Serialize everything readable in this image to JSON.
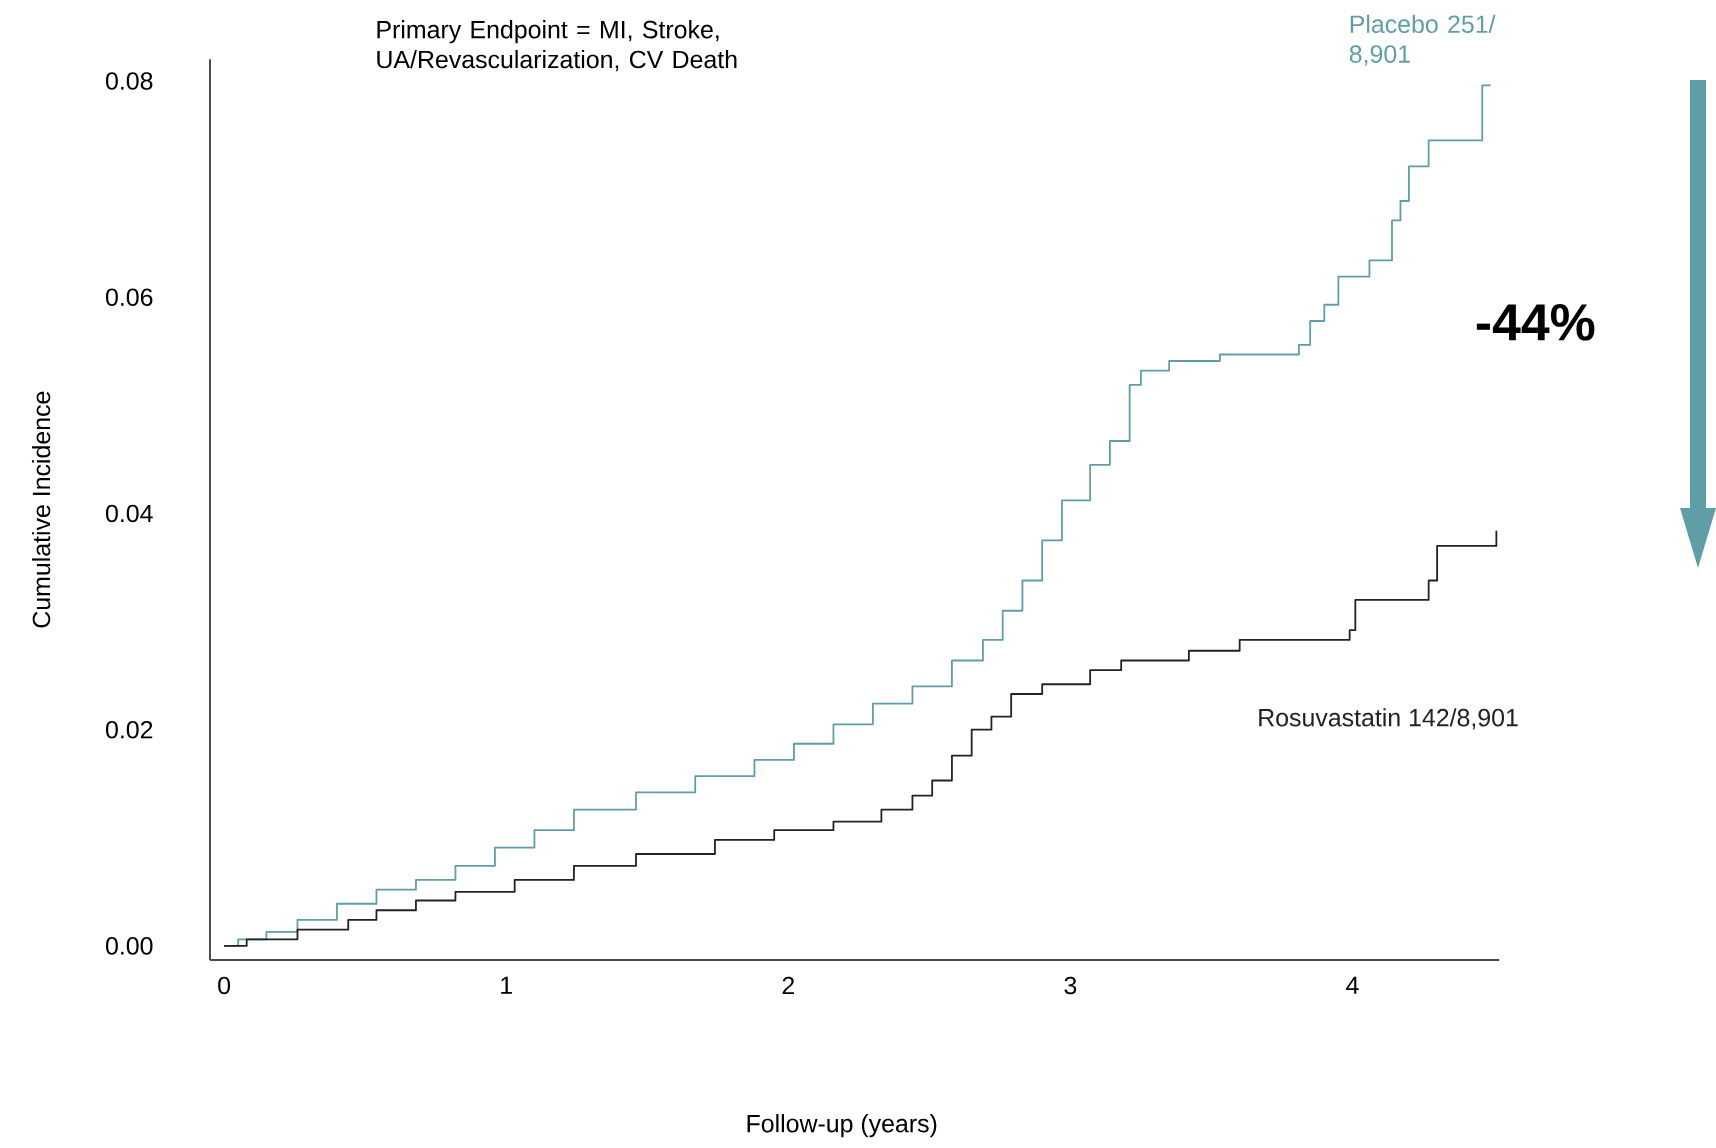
{
  "chart_data": {
    "type": "step",
    "annotations": [
      "Primary Endpoint = MI, Stroke, UA/Revascularization, CV Death",
      "-44%"
    ],
    "xlabel": "Follow-up (years)",
    "ylabel": "Cumulative Incidence",
    "xlim": [
      -0.05,
      4.52
    ],
    "ylim": [
      -0.0013,
      0.082
    ],
    "xticks": [
      0,
      1,
      2,
      3,
      4
    ],
    "yticks": [
      {
        "value": 0,
        "label": "0.00"
      },
      {
        "value": 0.02,
        "label": "0.02"
      },
      {
        "value": 0.04,
        "label": "0.04"
      },
      {
        "value": 0.06,
        "label": "0.06"
      },
      {
        "value": 0.08,
        "label": "0.08"
      }
    ],
    "grid": false,
    "legend": false,
    "series": [
      {
        "name": "Placebo 251/ 8,901",
        "color": "#5f9ea6",
        "x": [
          0,
          0.05,
          0.15,
          0.26,
          0.4,
          0.54,
          0.68,
          0.82,
          0.96,
          1.1,
          1.24,
          1.46,
          1.67,
          1.88,
          2.02,
          2.16,
          2.3,
          2.44,
          2.58,
          2.69,
          2.76,
          2.83,
          2.9,
          2.97,
          3.07,
          3.14,
          3.21,
          3.25,
          3.35,
          3.53,
          3.81,
          3.85,
          3.9,
          3.95,
          4.06,
          4.14,
          4.17,
          4.2,
          4.27,
          4.46,
          4.49
        ],
        "values": [
          0,
          0.0006,
          0.0013,
          0.0024,
          0.0039,
          0.0052,
          0.0061,
          0.0074,
          0.0091,
          0.0107,
          0.0126,
          0.0142,
          0.0157,
          0.0172,
          0.0187,
          0.0205,
          0.0224,
          0.024,
          0.0264,
          0.0283,
          0.031,
          0.0338,
          0.0375,
          0.0412,
          0.0445,
          0.0467,
          0.0519,
          0.0532,
          0.0541,
          0.0547,
          0.0556,
          0.0578,
          0.0593,
          0.0619,
          0.0634,
          0.0671,
          0.0689,
          0.0721,
          0.0745,
          0.0796,
          0.0796
        ]
      },
      {
        "name": "Rosuvastatin 142/8,901",
        "color": "#222222",
        "x": [
          0,
          0.08,
          0.26,
          0.44,
          0.54,
          0.68,
          0.82,
          1.03,
          1.24,
          1.46,
          1.74,
          1.95,
          2.16,
          2.33,
          2.44,
          2.51,
          2.58,
          2.65,
          2.72,
          2.79,
          2.9,
          3.07,
          3.18,
          3.42,
          3.6,
          3.99,
          4.01,
          4.27,
          4.3,
          4.51
        ],
        "values": [
          0,
          0.0006,
          0.0015,
          0.0024,
          0.0033,
          0.0042,
          0.005,
          0.0061,
          0.0074,
          0.0085,
          0.0098,
          0.0107,
          0.0115,
          0.0126,
          0.0139,
          0.0153,
          0.0176,
          0.02,
          0.0212,
          0.0233,
          0.0242,
          0.0255,
          0.0264,
          0.0273,
          0.0283,
          0.0292,
          0.032,
          0.0338,
          0.037,
          0.0384
        ]
      }
    ]
  }
}
